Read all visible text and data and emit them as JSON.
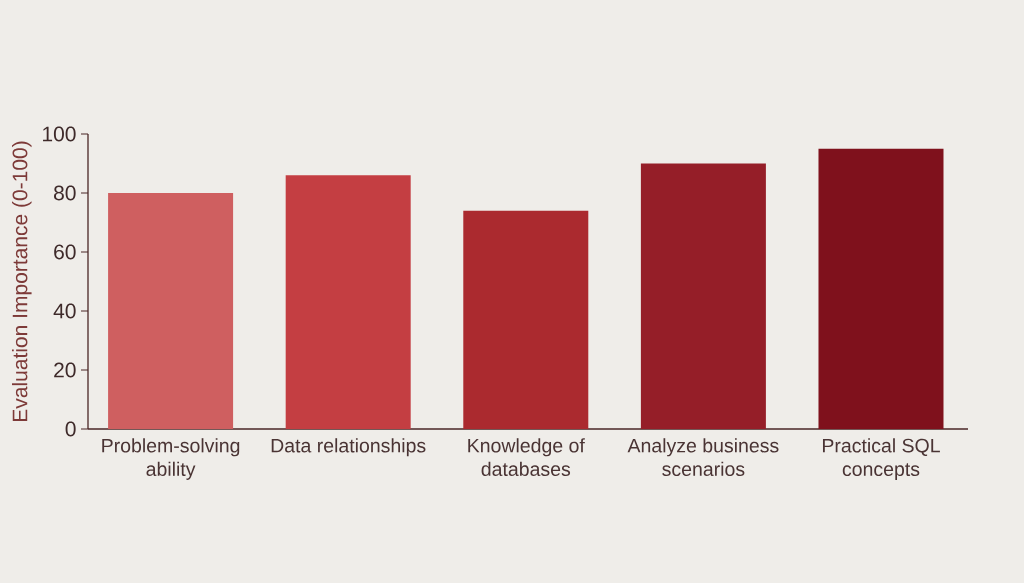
{
  "chart_data": {
    "type": "bar",
    "ylabel": "Evaluation Importance (0-100)",
    "categories": [
      "Problem-solving ability",
      "Data relationships",
      "Knowledge of databases",
      "Analyze business scenarios",
      "Practical SQL concepts"
    ],
    "values": [
      80,
      86,
      74,
      90,
      95
    ],
    "colors": [
      "#cf5f60",
      "#c43e42",
      "#ab2a2f",
      "#951e28",
      "#7f111c"
    ],
    "ylim": [
      0,
      100
    ],
    "yticks": [
      0,
      20,
      40,
      60,
      80,
      100
    ]
  }
}
